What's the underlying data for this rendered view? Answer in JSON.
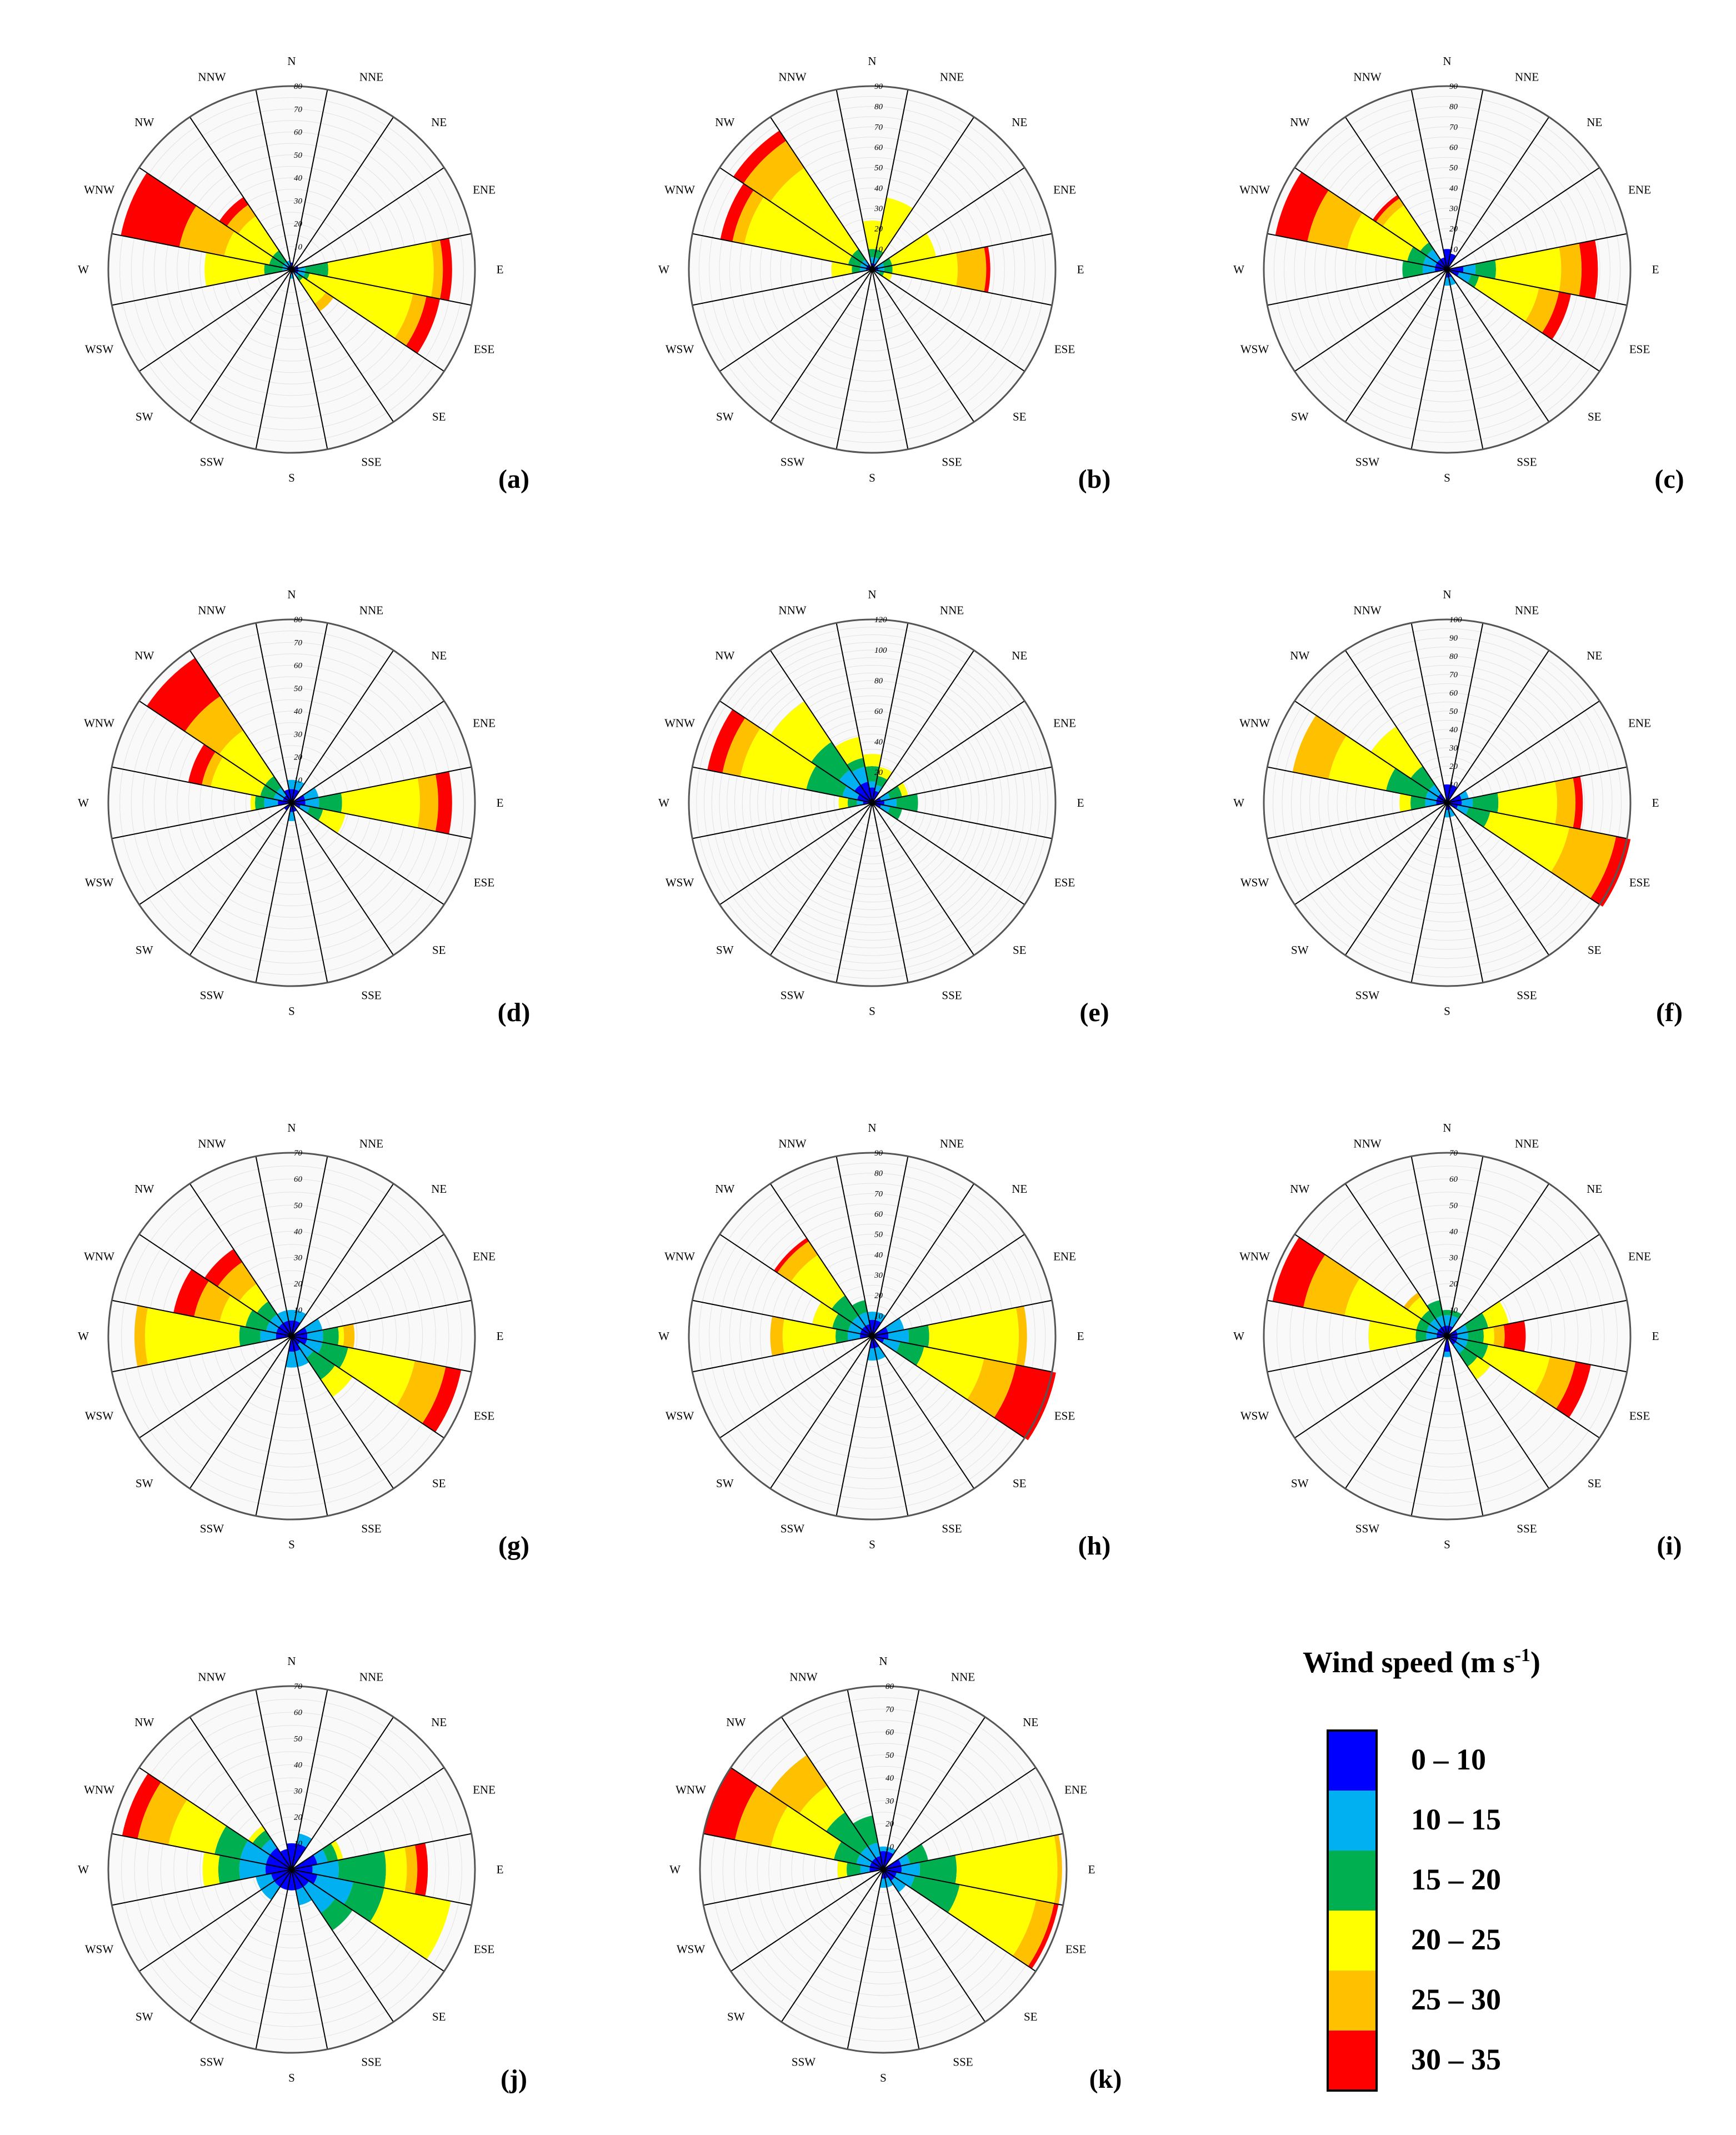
{
  "directions": [
    "N",
    "NNE",
    "NE",
    "ENE",
    "E",
    "ESE",
    "SE",
    "SSE",
    "S",
    "SSW",
    "SW",
    "WSW",
    "W",
    "WNW",
    "NW",
    "NNW"
  ],
  "bins": [
    {
      "label": "0 – 10",
      "color": "#0000ff"
    },
    {
      "label": "10 – 15",
      "color": "#00b0f0"
    },
    {
      "label": "15 – 20",
      "color": "#00b050"
    },
    {
      "label": "20 – 25",
      "color": "#ffff00"
    },
    {
      "label": "25 – 30",
      "color": "#ffc000"
    },
    {
      "label": "30 – 35",
      "color": "#ff0000"
    }
  ],
  "legend": {
    "title": "Wind speed (m s",
    "title_sup": "-1",
    "title_end": ")"
  },
  "chart_data": [
    {
      "type": "windrose",
      "panel": "(a)",
      "rmax": 80,
      "ticks": [
        10,
        20,
        30,
        40,
        50,
        60,
        70,
        80
      ],
      "sectors": {
        "E": [
          3,
          6,
          16,
          62,
          66,
          70
        ],
        "ESE": [
          3,
          6,
          8,
          54,
          60,
          66
        ],
        "SE": [
          2,
          4,
          6,
          18,
          22,
          0
        ],
        "S": [
          2,
          4,
          0,
          0,
          0,
          0
        ],
        "W": [
          2,
          4,
          12,
          38,
          0,
          0
        ],
        "WNW": [
          2,
          4,
          10,
          30,
          50,
          76
        ],
        "NW": [
          2,
          4,
          10,
          28,
          34,
          38
        ],
        "NNW": [
          2,
          4,
          0,
          0,
          0,
          0
        ],
        "N": [
          3,
          0,
          0,
          0,
          0,
          0
        ],
        "ENE": [
          3,
          0,
          0,
          0,
          0,
          0
        ]
      }
    },
    {
      "type": "windrose",
      "panel": "(b)",
      "rmax": 90,
      "ticks": [
        10,
        20,
        30,
        40,
        50,
        60,
        70,
        80,
        90
      ],
      "sectors": {
        "E": [
          3,
          6,
          10,
          42,
          56,
          58
        ],
        "ESE": [
          2,
          4,
          6,
          10,
          0,
          0
        ],
        "N": [
          3,
          6,
          10,
          24,
          0,
          0
        ],
        "W": [
          3,
          6,
          10,
          20,
          0,
          0
        ],
        "WNW": [
          3,
          6,
          12,
          64,
          70,
          76
        ],
        "NW": [
          3,
          6,
          12,
          60,
          76,
          82
        ],
        "NNE": [
          3,
          6,
          10,
          36,
          0,
          0
        ],
        "ENE": [
          3,
          6,
          10,
          32,
          0,
          0
        ]
      }
    },
    {
      "type": "windrose",
      "panel": "(c)",
      "rmax": 90,
      "ticks": [
        10,
        20,
        30,
        40,
        50,
        60,
        70,
        80,
        90
      ],
      "sectors": {
        "E": [
          8,
          14,
          24,
          56,
          66,
          74
        ],
        "ESE": [
          6,
          12,
          16,
          46,
          56,
          62
        ],
        "W": [
          6,
          12,
          22,
          0,
          0,
          0
        ],
        "WNW": [
          6,
          12,
          20,
          50,
          70,
          86
        ],
        "NW": [
          6,
          12,
          16,
          38,
          42,
          44
        ],
        "N": [
          10,
          0,
          0,
          0,
          0,
          0
        ],
        "NNE": [
          8,
          0,
          0,
          0,
          0,
          0
        ],
        "S": [
          4,
          8,
          0,
          0,
          0,
          0
        ],
        "SSE": [
          4,
          8,
          0,
          0,
          0,
          0
        ],
        "NNW": [
          6,
          0,
          0,
          0,
          0,
          0
        ]
      }
    },
    {
      "type": "windrose",
      "panel": "(d)",
      "rmax": 80,
      "ticks": [
        10,
        20,
        30,
        40,
        50,
        60,
        70,
        80
      ],
      "sectors": {
        "E": [
          6,
          12,
          22,
          56,
          64,
          70
        ],
        "ESE": [
          4,
          8,
          14,
          24,
          0,
          0
        ],
        "W": [
          6,
          12,
          16,
          18,
          0,
          0
        ],
        "WNW": [
          4,
          8,
          14,
          36,
          40,
          46
        ],
        "NW": [
          4,
          8,
          14,
          38,
          56,
          76
        ],
        "N": [
          6,
          10,
          0,
          0,
          0,
          0
        ],
        "NNE": [
          6,
          10,
          0,
          0,
          0,
          0
        ],
        "ENE": [
          6,
          12,
          0,
          0,
          0,
          0
        ],
        "S": [
          4,
          8,
          0,
          0,
          0,
          0
        ],
        "SSE": [
          4,
          0,
          0,
          0,
          0,
          0
        ],
        "SW": [
          4,
          0,
          0,
          0,
          0,
          0
        ],
        "NNW": [
          6,
          0,
          0,
          0,
          0,
          0
        ]
      }
    },
    {
      "type": "windrose",
      "panel": "(e)",
      "rmax": 120,
      "ticks": [
        20,
        40,
        60,
        80,
        100,
        120
      ],
      "sectors": {
        "E": [
          8,
          16,
          30,
          0,
          0,
          0
        ],
        "ESE": [
          6,
          12,
          20,
          0,
          0,
          0
        ],
        "W": [
          6,
          10,
          16,
          22,
          0,
          0
        ],
        "WNW": [
          10,
          20,
          44,
          88,
          100,
          110
        ],
        "NW": [
          14,
          26,
          48,
          80,
          0,
          0
        ],
        "NNW": [
          14,
          24,
          30,
          44,
          0,
          0
        ],
        "N": [
          10,
          14,
          24,
          32,
          0,
          0
        ],
        "NNE": [
          8,
          12,
          18,
          24,
          0,
          0
        ],
        "ENE": [
          6,
          12,
          20,
          24,
          0,
          0
        ]
      }
    },
    {
      "type": "windrose",
      "panel": "(f)",
      "rmax": 100,
      "ticks": [
        10,
        20,
        30,
        40,
        50,
        60,
        70,
        80,
        90,
        100
      ],
      "sectors": {
        "E": [
          8,
          14,
          28,
          60,
          70,
          74
        ],
        "ESE": [
          6,
          12,
          24,
          68,
          94,
          102
        ],
        "WNW": [
          6,
          12,
          34,
          66,
          86,
          0
        ],
        "NW": [
          6,
          12,
          24,
          50,
          0,
          0
        ],
        "W": [
          6,
          12,
          20,
          26,
          0,
          0
        ],
        "N": [
          10,
          0,
          0,
          0,
          0,
          0
        ],
        "NNE": [
          10,
          0,
          0,
          0,
          0,
          0
        ],
        "ENE": [
          8,
          12,
          0,
          0,
          0,
          0
        ],
        "S": [
          4,
          8,
          0,
          0,
          0,
          0
        ],
        "SSE": [
          4,
          8,
          0,
          0,
          0,
          0
        ]
      }
    },
    {
      "type": "windrose",
      "panel": "(g)",
      "rmax": 70,
      "ticks": [
        10,
        20,
        30,
        40,
        50,
        60,
        70
      ],
      "sectors": {
        "E": [
          6,
          12,
          18,
          20,
          24,
          0
        ],
        "ESE": [
          6,
          12,
          22,
          48,
          60,
          66
        ],
        "SE": [
          4,
          10,
          20,
          28,
          0,
          0
        ],
        "W": [
          6,
          12,
          20,
          56,
          60,
          0
        ],
        "WNW": [
          6,
          10,
          18,
          28,
          38,
          46
        ],
        "NW": [
          6,
          10,
          16,
          24,
          34,
          40
        ],
        "S": [
          6,
          12,
          0,
          0,
          0,
          0
        ],
        "SSE": [
          6,
          12,
          0,
          0,
          0,
          0
        ],
        "N": [
          6,
          10,
          0,
          0,
          0,
          0
        ],
        "NNW": [
          6,
          10,
          0,
          0,
          0,
          0
        ],
        "NNE": [
          6,
          10,
          0,
          0,
          0,
          0
        ],
        "ENE": [
          6,
          12,
          0,
          0,
          0,
          0
        ]
      }
    },
    {
      "type": "windrose",
      "panel": "(h)",
      "rmax": 90,
      "ticks": [
        10,
        20,
        30,
        40,
        50,
        60,
        70,
        80,
        90
      ],
      "sectors": {
        "E": [
          8,
          18,
          28,
          72,
          76,
          0
        ],
        "ESE": [
          6,
          14,
          26,
          56,
          72,
          92
        ],
        "W": [
          6,
          12,
          18,
          44,
          50,
          0
        ],
        "WNW": [
          6,
          12,
          20,
          30,
          0,
          0
        ],
        "NW": [
          6,
          12,
          24,
          48,
          56,
          58
        ],
        "NNW": [
          6,
          12,
          18,
          0,
          0,
          0
        ],
        "N": [
          8,
          12,
          0,
          0,
          0,
          0
        ],
        "NNE": [
          8,
          12,
          0,
          0,
          0,
          0
        ],
        "ENE": [
          8,
          16,
          0,
          0,
          0,
          0
        ],
        "SSE": [
          6,
          12,
          0,
          0,
          0,
          0
        ],
        "S": [
          6,
          12,
          0,
          0,
          0,
          0
        ]
      }
    },
    {
      "type": "windrose",
      "panel": "(i)",
      "rmax": 70,
      "ticks": [
        10,
        20,
        30,
        40,
        50,
        60,
        70
      ],
      "sectors": {
        "E": [
          4,
          8,
          14,
          18,
          22,
          30
        ],
        "ESE": [
          4,
          8,
          16,
          40,
          50,
          56
        ],
        "SE": [
          4,
          8,
          14,
          20,
          0,
          0
        ],
        "W": [
          4,
          8,
          12,
          30,
          0,
          0
        ],
        "WNW": [
          4,
          8,
          12,
          40,
          56,
          68
        ],
        "NW": [
          4,
          8,
          12,
          18,
          20,
          0
        ],
        "N": [
          4,
          8,
          10,
          0,
          0,
          0
        ],
        "NNE": [
          4,
          8,
          10,
          0,
          0,
          0
        ],
        "ENE": [
          4,
          8,
          16,
          24,
          0,
          0
        ],
        "S": [
          6,
          8,
          0,
          0,
          0,
          0
        ],
        "NNW": [
          4,
          8,
          14,
          0,
          0,
          0
        ]
      }
    },
    {
      "type": "windrose",
      "panel": "(j)",
      "rmax": 70,
      "ticks": [
        10,
        20,
        30,
        40,
        50,
        60,
        70
      ],
      "sectors": {
        "E": [
          8,
          18,
          36,
          44,
          48,
          52
        ],
        "ESE": [
          10,
          24,
          36,
          62,
          0,
          0
        ],
        "SE": [
          8,
          20,
          28,
          0,
          0,
          0
        ],
        "W": [
          10,
          20,
          28,
          34,
          0,
          0
        ],
        "WNW": [
          10,
          20,
          30,
          48,
          60,
          66
        ],
        "NW": [
          10,
          14,
          18,
          20,
          0,
          0
        ],
        "N": [
          10,
          0,
          0,
          0,
          0,
          0
        ],
        "NNE": [
          10,
          14,
          0,
          0,
          0,
          0
        ],
        "ENE": [
          10,
          14,
          18,
          20,
          0,
          0
        ],
        "S": [
          8,
          0,
          0,
          0,
          0,
          0
        ],
        "SSE": [
          8,
          14,
          0,
          0,
          0,
          0
        ],
        "SW": [
          8,
          14,
          0,
          0,
          0,
          0
        ],
        "WSW": [
          8,
          14,
          0,
          0,
          0,
          0
        ],
        "SSW": [
          8,
          0,
          0,
          0,
          0,
          0
        ],
        "NNW": [
          8,
          0,
          0,
          0,
          0,
          0
        ]
      }
    },
    {
      "type": "windrose",
      "panel": "(k)",
      "rmax": 80,
      "ticks": [
        10,
        20,
        30,
        40,
        50,
        60,
        70,
        80
      ],
      "sectors": {
        "E": [
          8,
          16,
          32,
          76,
          78,
          0
        ],
        "ESE": [
          6,
          14,
          34,
          68,
          76,
          78
        ],
        "SE": [
          6,
          12,
          0,
          0,
          0,
          0
        ],
        "W": [
          6,
          10,
          16,
          20,
          0,
          0
        ],
        "WNW": [
          6,
          12,
          22,
          50,
          66,
          80
        ],
        "NW": [
          6,
          12,
          30,
          44,
          60,
          0
        ],
        "NNW": [
          6,
          12,
          24,
          0,
          0,
          0
        ],
        "N": [
          8,
          10,
          0,
          0,
          0,
          0
        ],
        "NNE": [
          8,
          10,
          0,
          0,
          0,
          0
        ],
        "ENE": [
          8,
          12,
          20,
          0,
          0,
          0
        ],
        "S": [
          4,
          8,
          0,
          0,
          0,
          0
        ],
        "SSE": [
          4,
          8,
          0,
          0,
          0,
          0
        ]
      }
    }
  ]
}
